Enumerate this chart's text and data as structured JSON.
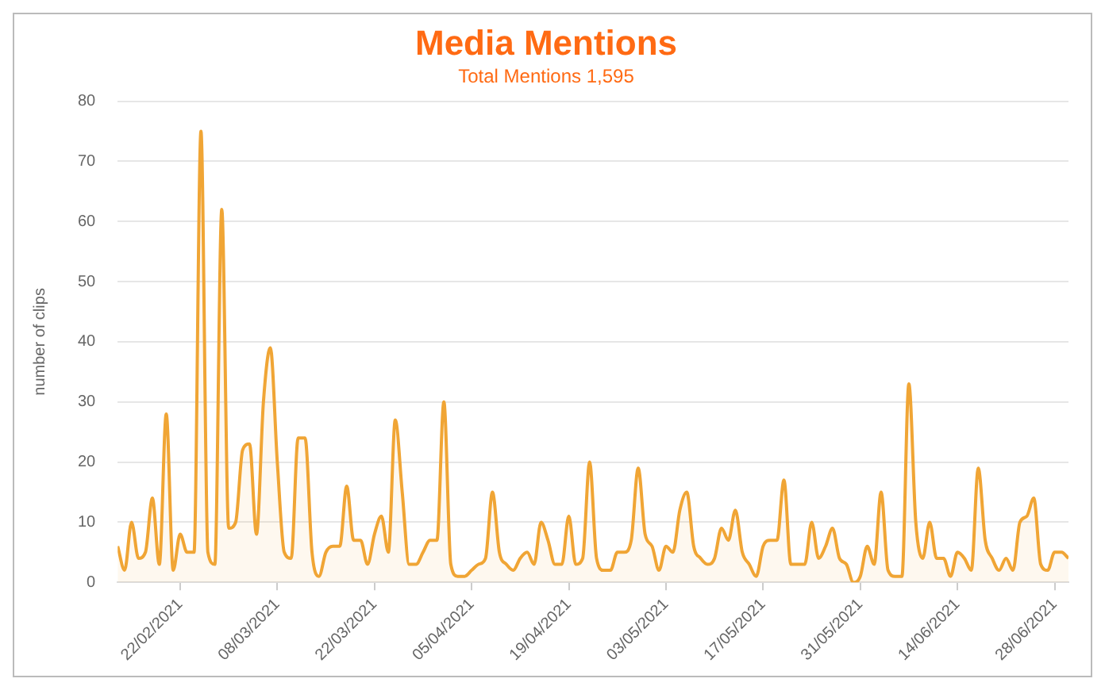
{
  "chart_data": {
    "type": "area",
    "title": "Media Mentions",
    "subtitle": "Total Mentions 1,595",
    "ylabel": "number of clips",
    "x": [
      "2021-02-13",
      "2021-02-14",
      "2021-02-15",
      "2021-02-16",
      "2021-02-17",
      "2021-02-18",
      "2021-02-19",
      "2021-02-20",
      "2021-02-21",
      "2021-02-22",
      "2021-02-23",
      "2021-02-24",
      "2021-02-25",
      "2021-02-26",
      "2021-02-27",
      "2021-02-28",
      "2021-03-01",
      "2021-03-02",
      "2021-03-03",
      "2021-03-04",
      "2021-03-05",
      "2021-03-06",
      "2021-03-07",
      "2021-03-08",
      "2021-03-09",
      "2021-03-10",
      "2021-03-11",
      "2021-03-12",
      "2021-03-13",
      "2021-03-14",
      "2021-03-15",
      "2021-03-16",
      "2021-03-17",
      "2021-03-18",
      "2021-03-19",
      "2021-03-20",
      "2021-03-21",
      "2021-03-22",
      "2021-03-23",
      "2021-03-24",
      "2021-03-25",
      "2021-03-26",
      "2021-03-27",
      "2021-03-28",
      "2021-03-29",
      "2021-03-30",
      "2021-03-31",
      "2021-04-01",
      "2021-04-02",
      "2021-04-03",
      "2021-04-04",
      "2021-04-05",
      "2021-04-06",
      "2021-04-07",
      "2021-04-08",
      "2021-04-09",
      "2021-04-10",
      "2021-04-11",
      "2021-04-12",
      "2021-04-13",
      "2021-04-14",
      "2021-04-15",
      "2021-04-16",
      "2021-04-17",
      "2021-04-18",
      "2021-04-19",
      "2021-04-20",
      "2021-04-21",
      "2021-04-22",
      "2021-04-23",
      "2021-04-24",
      "2021-04-25",
      "2021-04-26",
      "2021-04-27",
      "2021-04-28",
      "2021-04-29",
      "2021-04-30",
      "2021-05-01",
      "2021-05-02",
      "2021-05-03",
      "2021-05-04",
      "2021-05-05",
      "2021-05-06",
      "2021-05-07",
      "2021-05-08",
      "2021-05-09",
      "2021-05-10",
      "2021-05-11",
      "2021-05-12",
      "2021-05-13",
      "2021-05-14",
      "2021-05-15",
      "2021-05-16",
      "2021-05-17",
      "2021-05-18",
      "2021-05-19",
      "2021-05-20",
      "2021-05-21",
      "2021-05-22",
      "2021-05-23",
      "2021-05-24",
      "2021-05-25",
      "2021-05-26",
      "2021-05-27",
      "2021-05-28",
      "2021-05-29",
      "2021-05-30",
      "2021-05-31",
      "2021-06-01",
      "2021-06-02",
      "2021-06-03",
      "2021-06-04",
      "2021-06-05",
      "2021-06-06",
      "2021-06-07",
      "2021-06-08",
      "2021-06-09",
      "2021-06-10",
      "2021-06-11",
      "2021-06-12",
      "2021-06-13",
      "2021-06-14",
      "2021-06-15",
      "2021-06-16",
      "2021-06-17",
      "2021-06-18",
      "2021-06-19",
      "2021-06-20",
      "2021-06-21",
      "2021-06-22",
      "2021-06-23",
      "2021-06-24",
      "2021-06-25",
      "2021-06-26",
      "2021-06-27",
      "2021-06-28",
      "2021-06-29",
      "2021-06-30"
    ],
    "series": [
      {
        "color": "#f0a535",
        "values": [
          6,
          2,
          10,
          4,
          5,
          14,
          3,
          28,
          2,
          8,
          5,
          5,
          75,
          5,
          3,
          62,
          9,
          10,
          22,
          23,
          8,
          30,
          39,
          20,
          5,
          4,
          24,
          24,
          5,
          1,
          5,
          6,
          6,
          16,
          7,
          7,
          3,
          8,
          11,
          5,
          27,
          15,
          3,
          3,
          5,
          7,
          7,
          30,
          3,
          1,
          1,
          2,
          3,
          4,
          15,
          5,
          3,
          2,
          4,
          5,
          3,
          10,
          7,
          3,
          3,
          11,
          3,
          4,
          20,
          4,
          2,
          2,
          5,
          5,
          7,
          19,
          8,
          6,
          2,
          6,
          5,
          12,
          15,
          6,
          4,
          3,
          4,
          9,
          7,
          12,
          5,
          3,
          1,
          6,
          7,
          7,
          17,
          3,
          3,
          3,
          10,
          4,
          6,
          9,
          4,
          3,
          0,
          1,
          6,
          3,
          15,
          2,
          1,
          1,
          33,
          10,
          4,
          10,
          4,
          4,
          1,
          5,
          4,
          2,
          19,
          7,
          4,
          2,
          4,
          2,
          10,
          11,
          14,
          3,
          2,
          5,
          5,
          4
        ]
      }
    ],
    "xlim": [
      "2021-02-13",
      "2021-06-30"
    ],
    "xticks": [
      {
        "value": "2021-02-22",
        "label": "22/02/2021"
      },
      {
        "value": "2021-03-08",
        "label": "08/03/2021"
      },
      {
        "value": "2021-03-22",
        "label": "22/03/2021"
      },
      {
        "value": "2021-04-05",
        "label": "05/04/2021"
      },
      {
        "value": "2021-04-19",
        "label": "19/04/2021"
      },
      {
        "value": "2021-05-03",
        "label": "03/05/2021"
      },
      {
        "value": "2021-05-17",
        "label": "17/05/2021"
      },
      {
        "value": "2021-05-31",
        "label": "31/05/2021"
      },
      {
        "value": "2021-06-14",
        "label": "14/06/2021"
      },
      {
        "value": "2021-06-28",
        "label": "28/06/2021"
      }
    ],
    "ylim": [
      0,
      80
    ],
    "yticks": [
      0,
      10,
      20,
      30,
      40,
      50,
      60,
      70,
      80
    ],
    "grid": "y",
    "legend": false,
    "marker": "none",
    "line_style": "solid"
  }
}
